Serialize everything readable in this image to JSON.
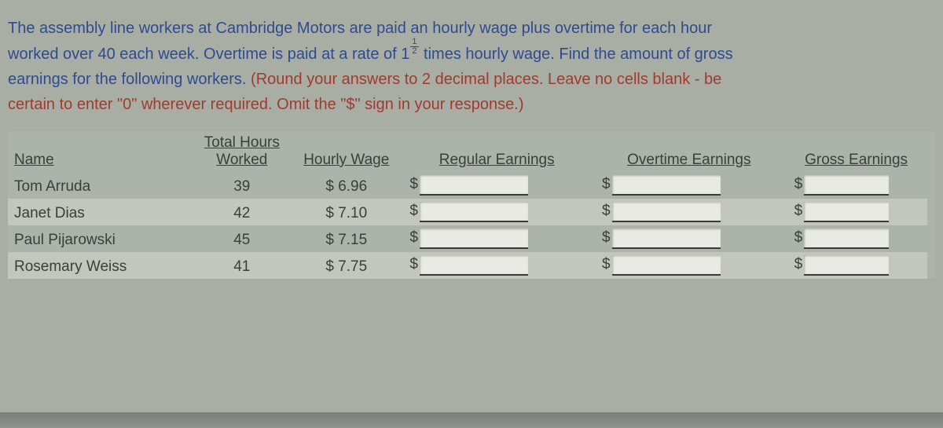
{
  "question": {
    "line1_blue": "The assembly line workers at Cambridge Motors are paid an hourly wage plus overtime for each hour",
    "line2a_blue": "worked over 40 each week. Overtime is paid at a rate of 1",
    "line2b_blue": " times hourly wage. Find the amount of gross",
    "line3_blue": "earnings for the following workers. ",
    "line3_red": "(Round your answers to 2 decimal places. Leave no cells blank - be",
    "line4_red": "certain to enter \"0\" wherever required. Omit the \"$\" sign in your response.)",
    "fraction": {
      "num": "1",
      "den": "2"
    }
  },
  "headers": {
    "name": "Name",
    "hours_line1": "Total Hours",
    "hours_line2": "Worked",
    "wage": "Hourly Wage",
    "regular": "Regular Earnings",
    "overtime": "Overtime Earnings",
    "gross": "Gross Earnings"
  },
  "rows": [
    {
      "name": "Tom Arruda",
      "hours": "39",
      "wage": "$ 6.96",
      "alt": false
    },
    {
      "name": "Janet Dias",
      "hours": "42",
      "wage": "$ 7.10",
      "alt": true
    },
    {
      "name": "Paul  Pijarowski",
      "hours": "45",
      "wage": "$ 7.15",
      "alt": false
    },
    {
      "name": "Rosemary Weiss",
      "hours": "41",
      "wage": "$ 7.75",
      "alt": true
    }
  ],
  "dollar_sign": "$",
  "colors": {
    "page_bg": "#a9aea5",
    "text_blue": "#2f4a8f",
    "text_red": "#a03a2f",
    "row_alt_bg": "#c2c6bd",
    "input_bg": "#e8eae3",
    "input_border": "#3a3c3a"
  }
}
